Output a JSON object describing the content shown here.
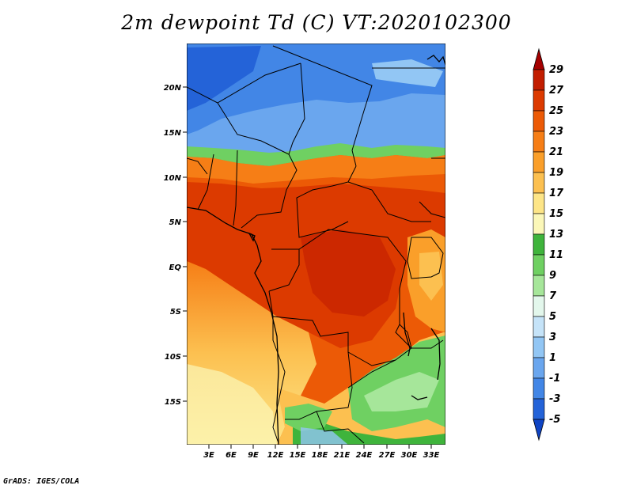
{
  "title": "2m dewpoint Td (C) VT:2020102300",
  "credit": "GrADS: IGES/COLA",
  "lat_labels": [
    "20N",
    "15N",
    "10N",
    "5N",
    "EQ",
    "5S",
    "10S",
    "15S"
  ],
  "lon_labels": [
    "3E",
    "6E",
    "9E",
    "12E",
    "15E",
    "18E",
    "21E",
    "24E",
    "27E",
    "30E",
    "33E"
  ],
  "colorbar": {
    "labels": [
      "29",
      "27",
      "25",
      "23",
      "21",
      "19",
      "17",
      "15",
      "13",
      "11",
      "9",
      "7",
      "5",
      "3",
      "1",
      "-1",
      "-3",
      "-5"
    ],
    "colors": [
      "#a50000",
      "#c21d00",
      "#dc3a00",
      "#ec5a06",
      "#f67e16",
      "#fa9f2a",
      "#fcc050",
      "#fde587",
      "#fbf7b8",
      "#3fb43c",
      "#6fd062",
      "#a6e69a",
      "#e3f7ec",
      "#c5e3f8",
      "#92c6f4",
      "#6aa6ee",
      "#4286e6",
      "#2463d8",
      "#0f44c4"
    ]
  }
}
